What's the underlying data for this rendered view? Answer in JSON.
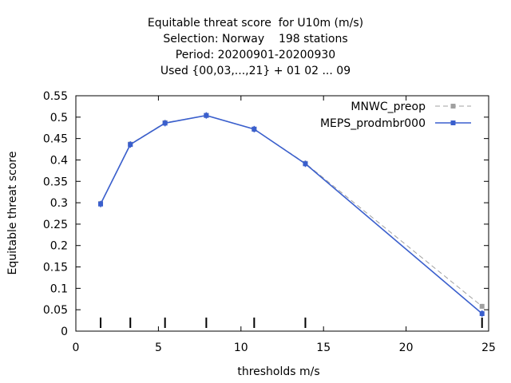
{
  "chart_data": {
    "type": "line",
    "title_lines": [
      "Equitable threat score  for U10m (m/s)",
      "Selection: Norway    198 stations",
      "Period: 20200901-20200930",
      "Used {00,03,...,21} + 01 02 ... 09"
    ],
    "xlabel": "thresholds m/s",
    "ylabel": "Equitable threat score",
    "xlim": [
      0,
      25
    ],
    "ylim": [
      0,
      0.55
    ],
    "xticks": [
      "0",
      "5",
      "10",
      "15",
      "20",
      "25"
    ],
    "yticks": [
      "0",
      "0.05",
      "0.1",
      "0.15",
      "0.2",
      "0.25",
      "0.3",
      "0.35",
      "0.4",
      "0.45",
      "0.5",
      "0.55"
    ],
    "grid": false,
    "legend_position": "top-right",
    "threshold_marks": [
      1.5,
      3.3,
      5.4,
      7.9,
      10.8,
      13.9,
      24.6
    ],
    "series": [
      {
        "name": "MNWC_preop",
        "color": "#a0a0a0",
        "style": "dashed",
        "x": [
          1.5,
          3.3,
          5.4,
          7.9,
          10.8,
          13.9,
          24.6
        ],
        "y": [
          0.298,
          0.437,
          0.487,
          0.504,
          0.472,
          0.392,
          0.058
        ]
      },
      {
        "name": "MEPS_prodmbr000",
        "color": "#3a5fcd",
        "style": "solid",
        "x": [
          1.5,
          3.3,
          5.4,
          7.9,
          10.8,
          13.9,
          24.6
        ],
        "y": [
          0.297,
          0.436,
          0.486,
          0.504,
          0.472,
          0.391,
          0.041
        ]
      }
    ]
  }
}
